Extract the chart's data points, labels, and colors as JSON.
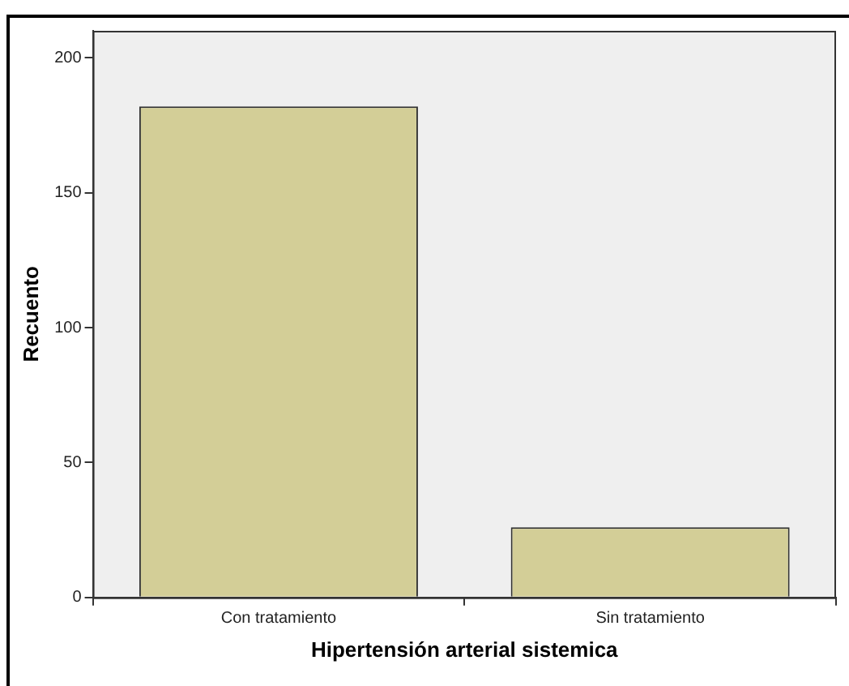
{
  "chart_data": {
    "type": "bar",
    "xlabel": "Hipertensión arterial sistemica",
    "ylabel": "Recuento",
    "categories": [
      "Con tratamiento",
      "Sin tratamiento"
    ],
    "values": [
      182,
      26
    ],
    "color": "#d3ce97",
    "ylim": [
      0,
      210
    ],
    "yticks": [
      0,
      50,
      100,
      150,
      200
    ],
    "grid": false,
    "legend": false
  }
}
